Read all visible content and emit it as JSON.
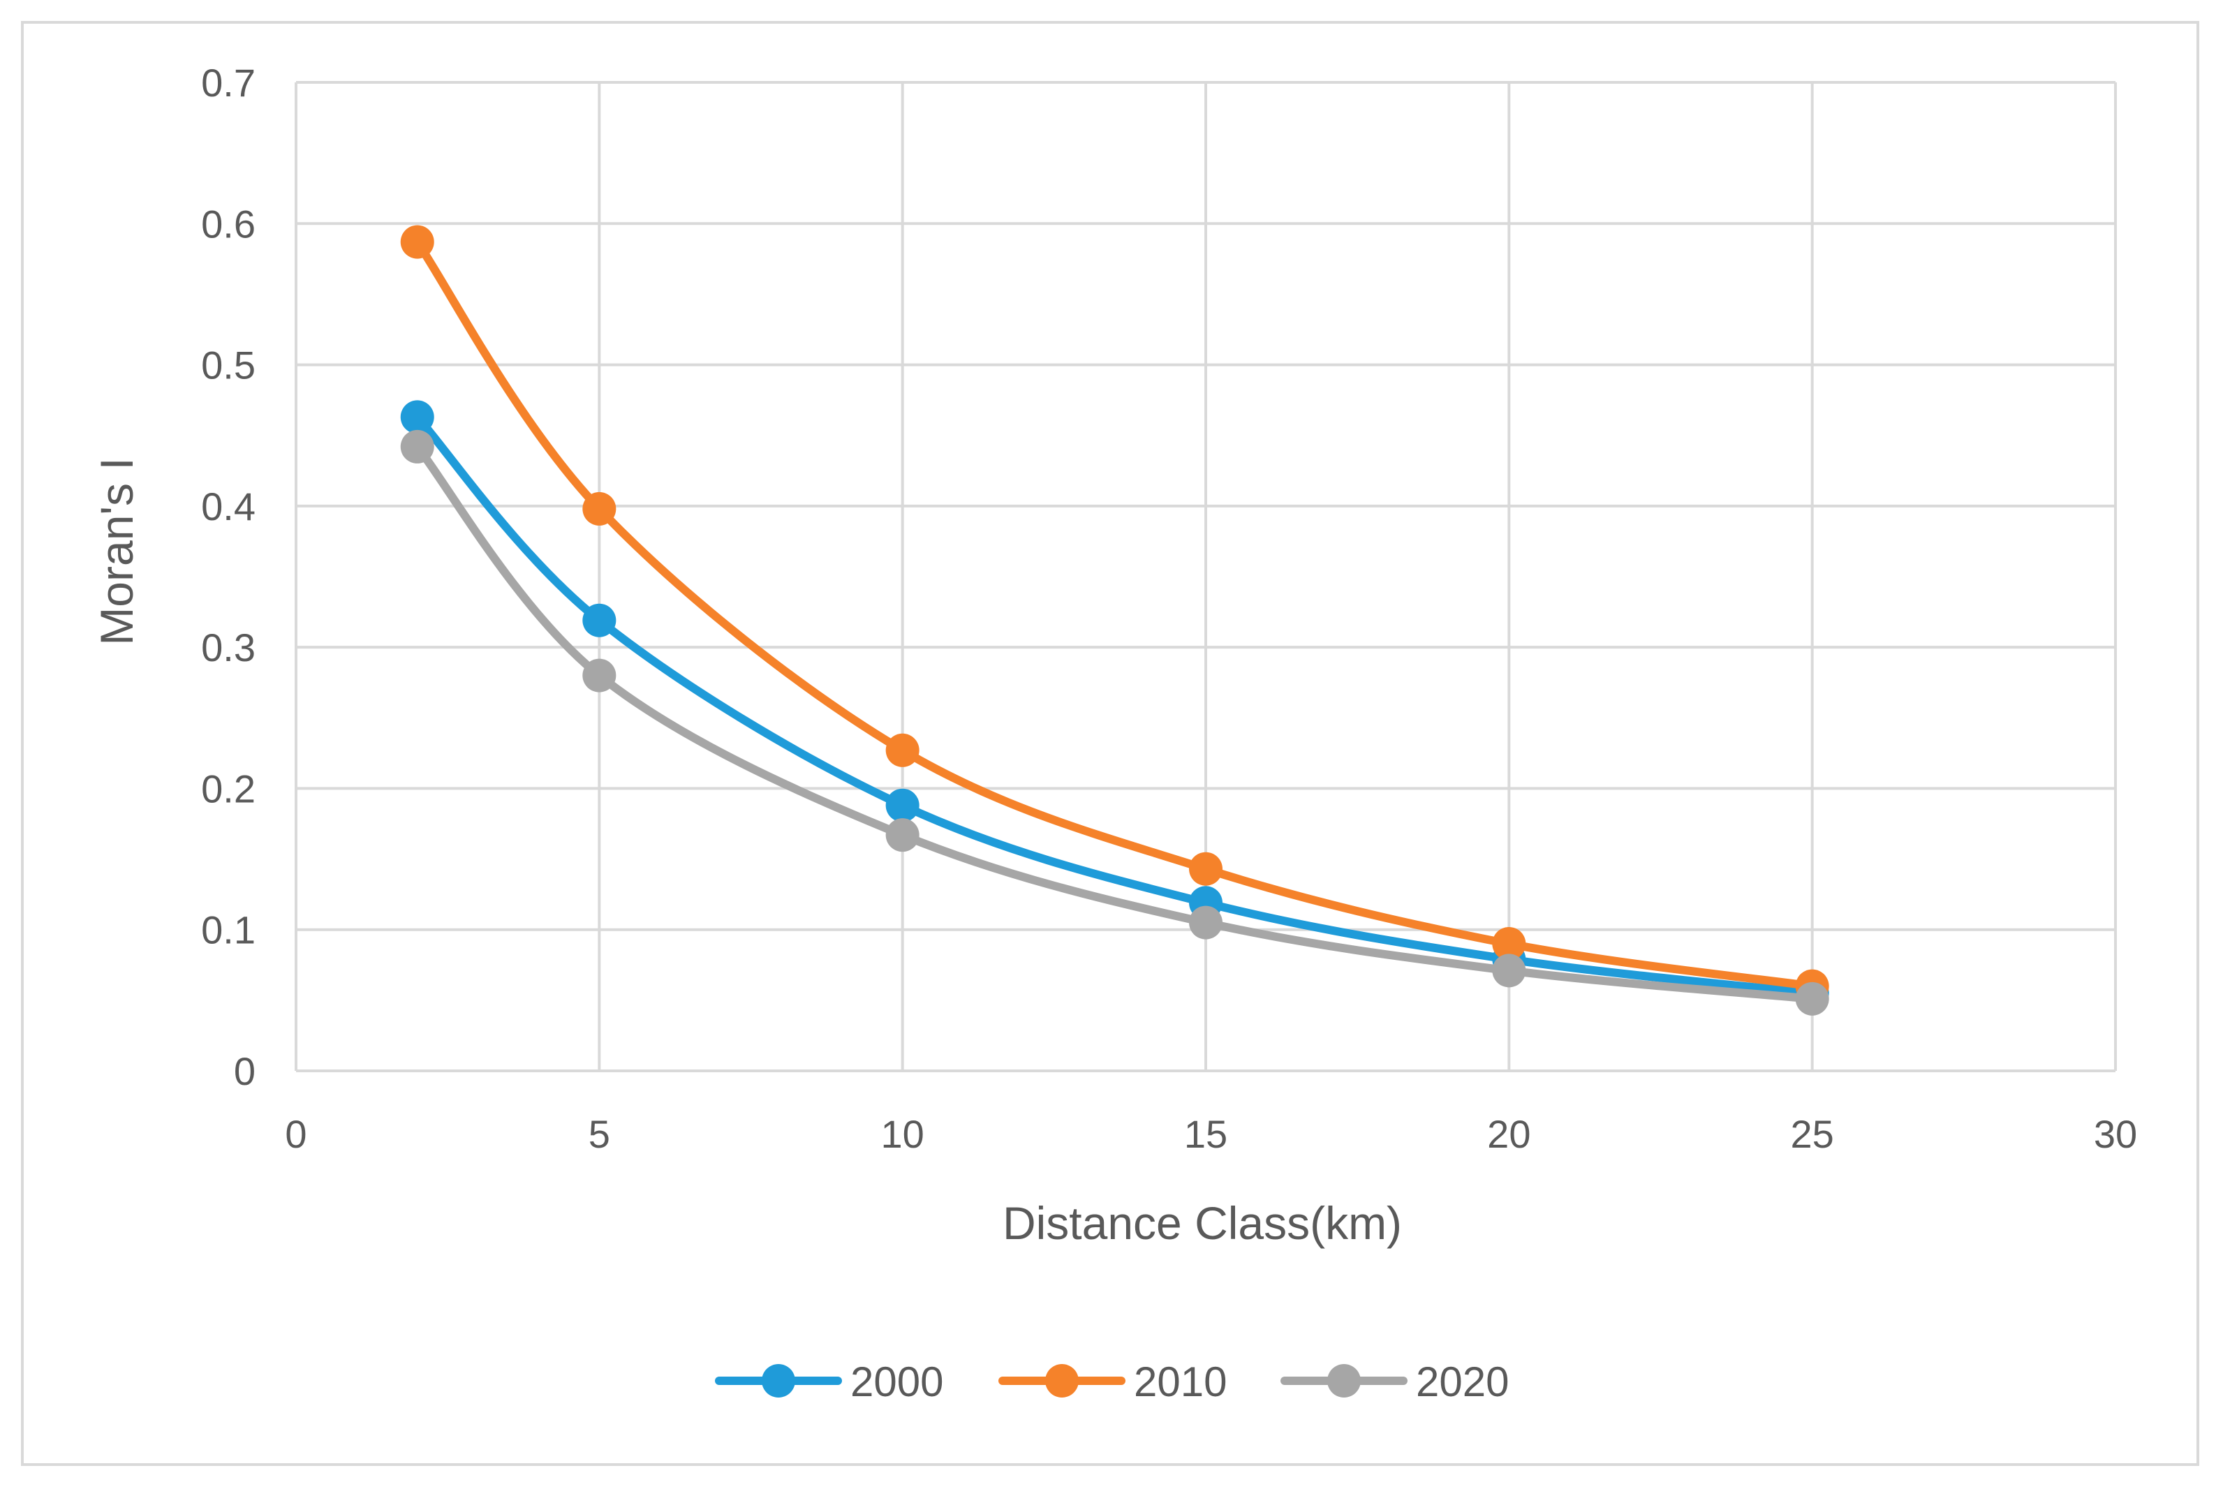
{
  "chart_data": {
    "type": "line",
    "smooth": true,
    "x": [
      2,
      5,
      10,
      15,
      20,
      25
    ],
    "series": [
      {
        "name": "2000",
        "color": "#1f9bd9",
        "values": [
          0.463,
          0.319,
          0.188,
          0.119,
          0.079,
          0.055
        ]
      },
      {
        "name": "2010",
        "color": "#f5822a",
        "values": [
          0.587,
          0.398,
          0.227,
          0.143,
          0.09,
          0.06
        ]
      },
      {
        "name": "2020",
        "color": "#a6a6a6",
        "values": [
          0.442,
          0.28,
          0.167,
          0.105,
          0.071,
          0.051
        ]
      }
    ],
    "xlabel": "Distance Class(km)",
    "ylabel": "Moran's I",
    "xlim": [
      0,
      30
    ],
    "ylim": [
      0,
      0.7
    ],
    "x_ticks": [
      "0",
      "5",
      "10",
      "15",
      "20",
      "25",
      "30"
    ],
    "y_ticks": [
      "0",
      "0.1",
      "0.2",
      "0.3",
      "0.4",
      "0.5",
      "0.6",
      "0.7"
    ],
    "grid": true,
    "legend_position": "bottom"
  }
}
